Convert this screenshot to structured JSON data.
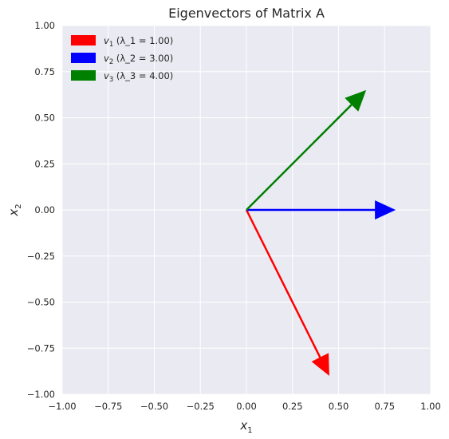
{
  "chart_data": {
    "type": "quiver",
    "title": "Eigenvectors of Matrix A",
    "xlabel": {
      "base": "x",
      "sub": "1"
    },
    "ylabel": {
      "base": "x",
      "sub": "2"
    },
    "xlim": [
      -1,
      1
    ],
    "ylim": [
      -1,
      1
    ],
    "xticks": [
      "−1.00",
      "−0.75",
      "−0.50",
      "−0.25",
      "0.00",
      "0.25",
      "0.50",
      "0.75",
      "1.00"
    ],
    "yticks": [
      "1.00",
      "0.75",
      "0.50",
      "0.25",
      "0.00",
      "−0.25",
      "−0.50",
      "−0.75",
      "−1.00"
    ],
    "xtick_values": [
      -1,
      -0.75,
      -0.5,
      -0.25,
      0,
      0.25,
      0.5,
      0.75,
      1
    ],
    "ytick_values": [
      1,
      0.75,
      0.5,
      0.25,
      0,
      -0.25,
      -0.5,
      -0.75,
      -1
    ],
    "grid": true,
    "legend_position": "top-left",
    "origin": [
      0,
      0
    ],
    "series": [
      {
        "name": "v_1 (λ_1 = 1.00)",
        "label_sub": "1",
        "label_rest": " (λ_1 = 1.00)",
        "color": "#ff0000",
        "vector": [
          0.45,
          -0.9
        ]
      },
      {
        "name": "v_2 (λ_2 = 3.00)",
        "label_sub": "2",
        "label_rest": " (λ_2 = 3.00)",
        "color": "#0000ff",
        "vector": [
          0.81,
          0.0
        ]
      },
      {
        "name": "v_3 (λ_3 = 4.00)",
        "label_sub": "3",
        "label_rest": " (λ_3 = 4.00)",
        "color": "#008000",
        "vector": [
          0.65,
          0.65
        ]
      }
    ]
  }
}
